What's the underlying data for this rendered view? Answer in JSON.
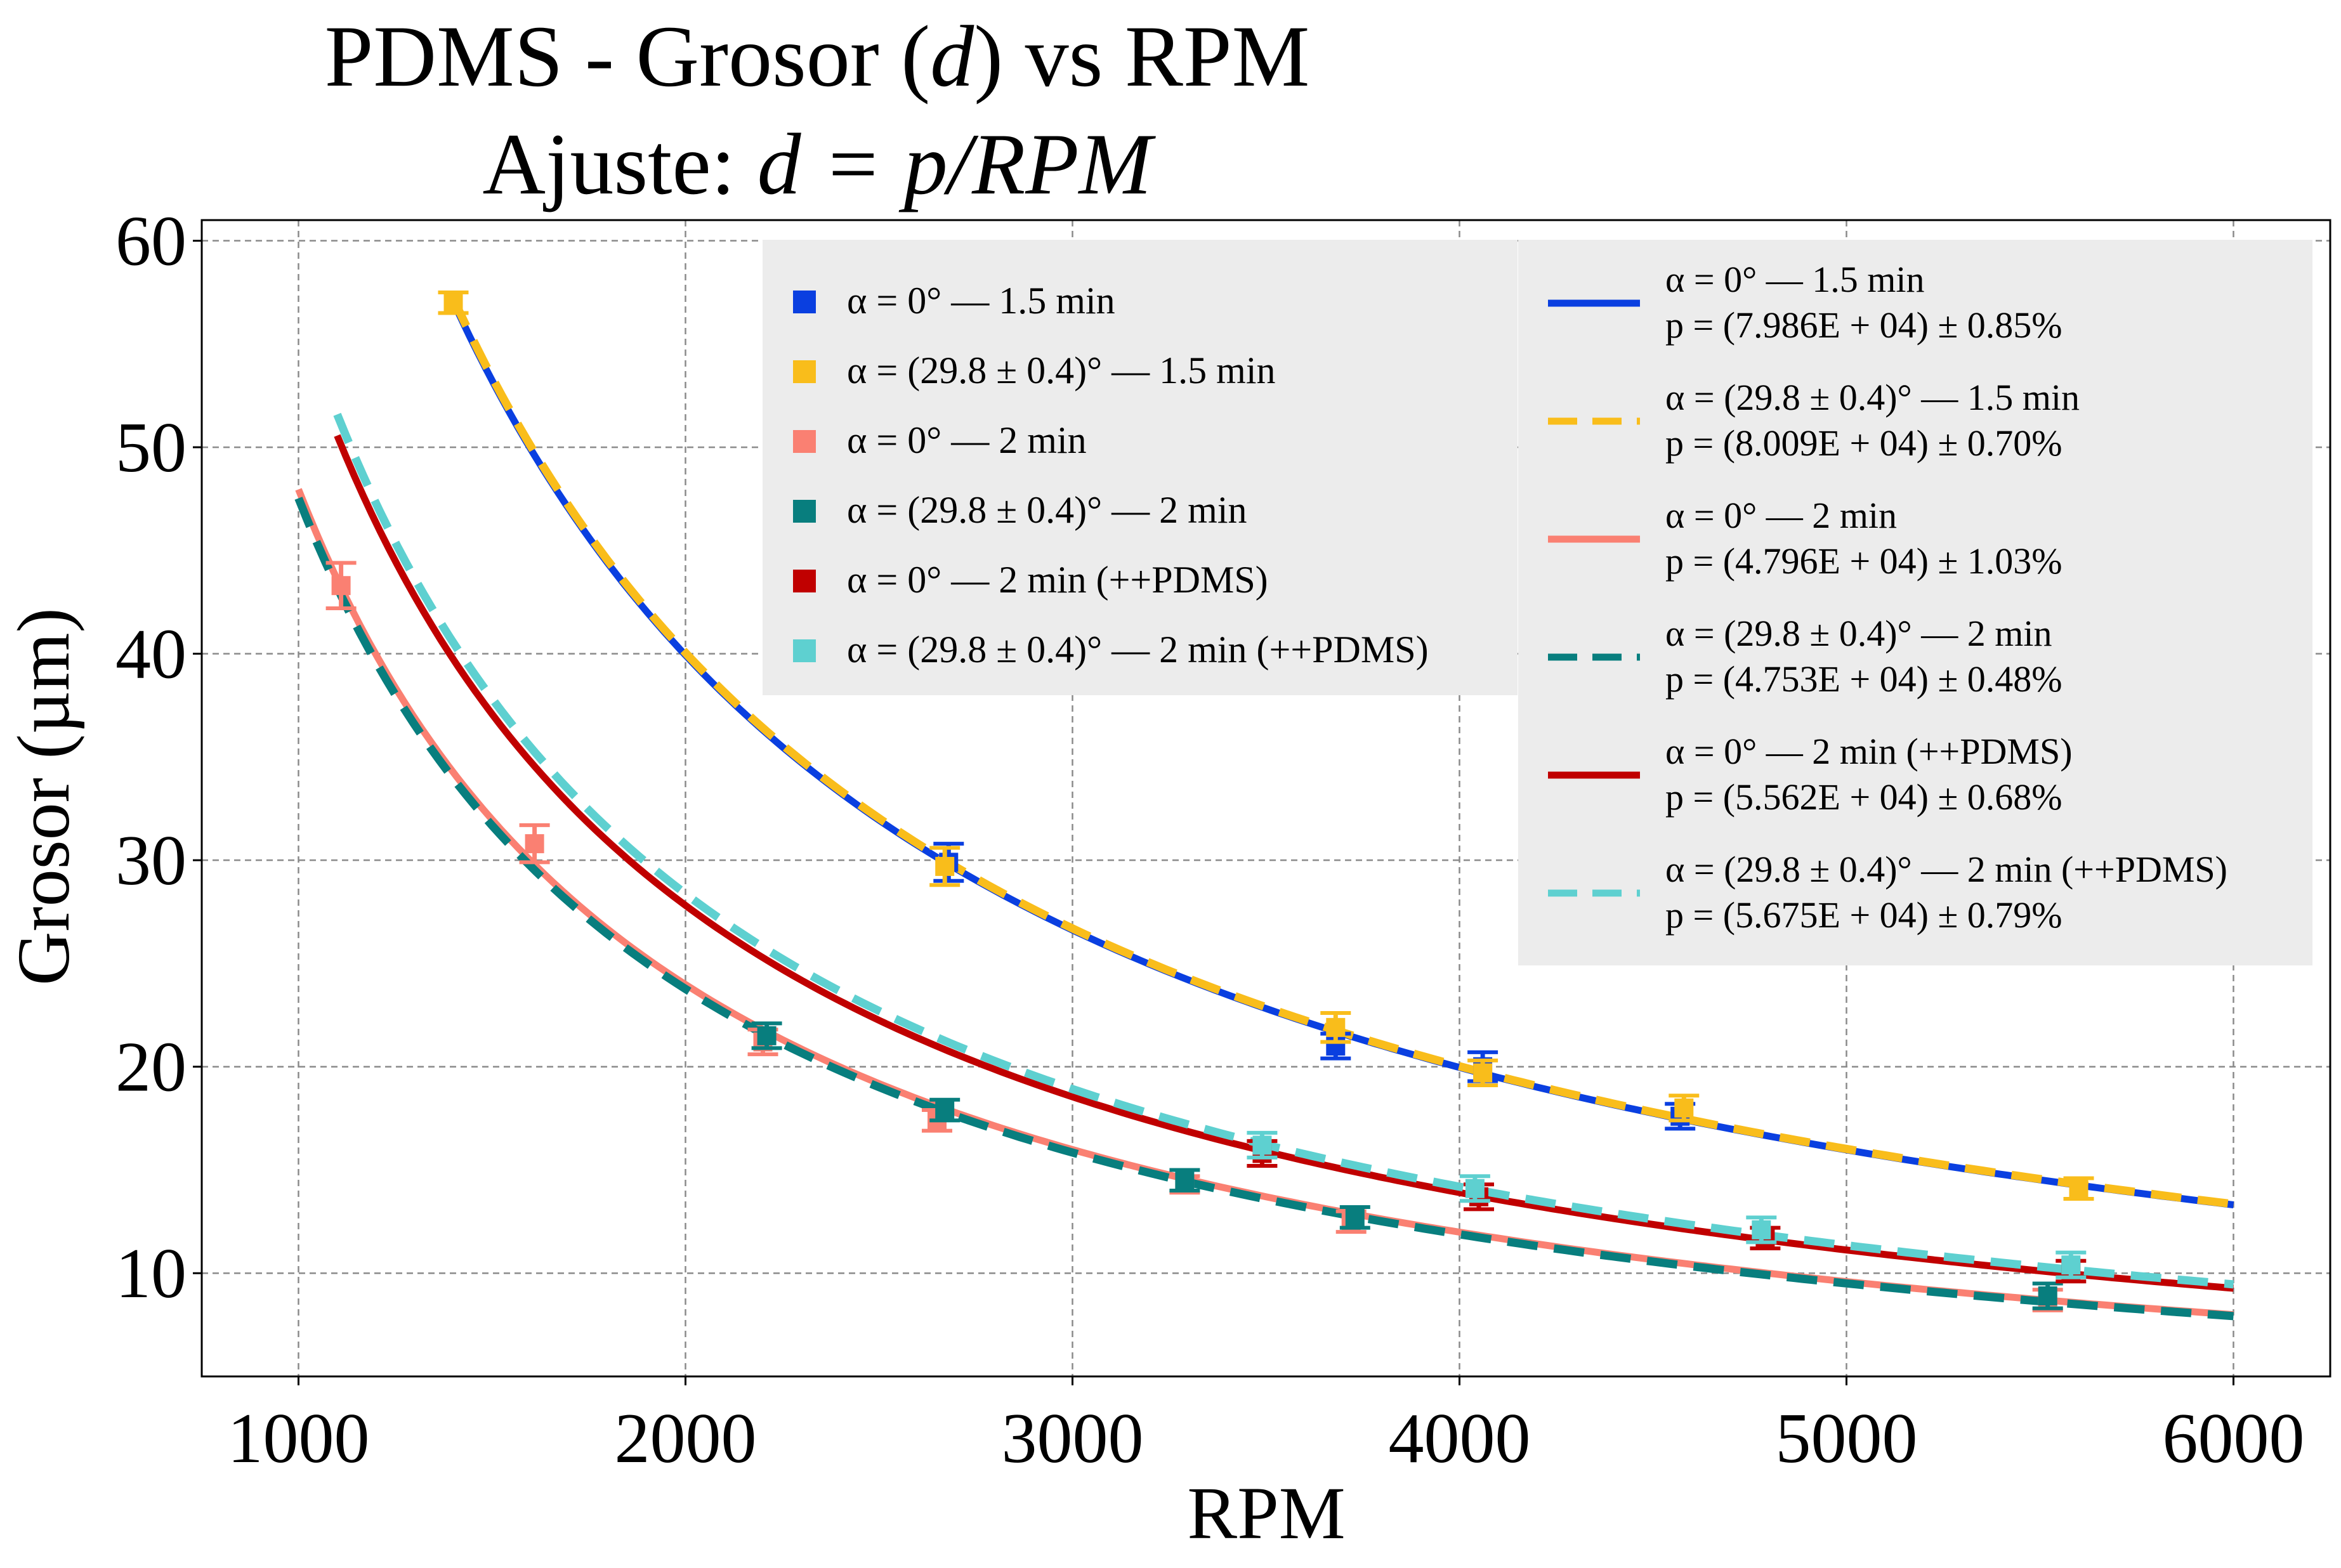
{
  "chart_data": {
    "type": "scatter",
    "title_line1_pre": "PDMS - Grosor (",
    "title_line1_var": "d",
    "title_line1_post": ") vs RPM",
    "title_line2_pre": "Ajuste: ",
    "title_line2_math": "d = p/RPM",
    "xlabel": "RPM",
    "ylabel": "Grosor (µm)",
    "xlim": [
      750,
      6250
    ],
    "ylim": [
      5,
      61
    ],
    "xticks": [
      1000,
      2000,
      3000,
      4000,
      5000,
      6000
    ],
    "yticks": [
      10,
      20,
      30,
      40,
      50,
      60
    ],
    "grid": true,
    "legend_placement": "top-right",
    "scatter_series": [
      {
        "name": "α = 0° — 1.5 min",
        "color": "#0a3fe0",
        "marker": "square",
        "points": [
          {
            "x": 1400,
            "y": 57.0,
            "err": 0.5
          },
          {
            "x": 2680,
            "y": 29.9,
            "err": 0.9
          },
          {
            "x": 3680,
            "y": 21.0,
            "err": 0.6
          },
          {
            "x": 4060,
            "y": 20.0,
            "err": 0.7
          },
          {
            "x": 4570,
            "y": 17.6,
            "err": 0.6
          },
          {
            "x": 5600,
            "y": 14.1,
            "err": 0.5
          }
        ]
      },
      {
        "name": "α = (29.8 ± 0.4)° — 1.5 min",
        "color": "#f9bd1b",
        "marker": "square",
        "points": [
          {
            "x": 1400,
            "y": 57.0,
            "err": 0.5
          },
          {
            "x": 2670,
            "y": 29.7,
            "err": 0.9
          },
          {
            "x": 3680,
            "y": 21.9,
            "err": 0.7
          },
          {
            "x": 4060,
            "y": 19.7,
            "err": 0.6
          },
          {
            "x": 4580,
            "y": 18.0,
            "err": 0.6
          },
          {
            "x": 5600,
            "y": 14.1,
            "err": 0.5
          }
        ]
      },
      {
        "name": "α = 0° — 2 min",
        "color": "#fa8072",
        "marker": "square",
        "points": [
          {
            "x": 1110,
            "y": 43.3,
            "err": 1.1
          },
          {
            "x": 1610,
            "y": 30.8,
            "err": 0.9
          },
          {
            "x": 2200,
            "y": 21.2,
            "err": 0.6
          },
          {
            "x": 2650,
            "y": 17.4,
            "err": 0.5
          },
          {
            "x": 3290,
            "y": 14.3,
            "err": 0.4
          },
          {
            "x": 3720,
            "y": 12.5,
            "err": 0.5
          },
          {
            "x": 5520,
            "y": 8.7,
            "err": 0.5
          }
        ]
      },
      {
        "name": "α = (29.8 ± 0.4)° — 2 min",
        "color": "#087e7e",
        "marker": "square",
        "points": [
          {
            "x": 2210,
            "y": 21.5,
            "err": 0.6
          },
          {
            "x": 2670,
            "y": 17.9,
            "err": 0.5
          },
          {
            "x": 3290,
            "y": 14.5,
            "err": 0.5
          },
          {
            "x": 3730,
            "y": 12.7,
            "err": 0.5
          },
          {
            "x": 5520,
            "y": 8.9,
            "err": 0.6
          }
        ]
      },
      {
        "name": "α = 0° — 2 min (++PDMS)",
        "color": "#c00000",
        "marker": "square",
        "points": [
          {
            "x": 3490,
            "y": 15.8,
            "err": 0.6
          },
          {
            "x": 4050,
            "y": 13.7,
            "err": 0.6
          },
          {
            "x": 4790,
            "y": 11.7,
            "err": 0.5
          },
          {
            "x": 5580,
            "y": 10.1,
            "err": 0.5
          }
        ]
      },
      {
        "name": "α = (29.8 ± 0.4)° — 2 min (++PDMS)",
        "color": "#5ed0d0",
        "marker": "square",
        "points": [
          {
            "x": 3490,
            "y": 16.2,
            "err": 0.6
          },
          {
            "x": 4040,
            "y": 14.1,
            "err": 0.6
          },
          {
            "x": 4780,
            "y": 12.1,
            "err": 0.6
          },
          {
            "x": 5580,
            "y": 10.4,
            "err": 0.6
          }
        ]
      }
    ],
    "fit_series": [
      {
        "name": "α = 0° — 1.5 min",
        "color": "#0a3fe0",
        "dash": "solid",
        "p": 79860,
        "x_range": [
          1400,
          6000
        ],
        "label_p": "p = (7.986E + 04) ± 0.85%"
      },
      {
        "name": "α = (29.8 ± 0.4)° — 1.5 min",
        "color": "#f9bd1b",
        "dash": "dashed",
        "p": 80090,
        "x_range": [
          1400,
          6000
        ],
        "label_p": "p = (8.009E + 04) ± 0.70%"
      },
      {
        "name": "α = 0° — 2 min",
        "color": "#fa8072",
        "dash": "solid",
        "p": 47960,
        "x_range": [
          1000,
          6000
        ],
        "label_p": "p = (4.796E + 04) ± 1.03%"
      },
      {
        "name": "α = (29.8 ± 0.4)° — 2 min",
        "color": "#087e7e",
        "dash": "dashed",
        "p": 47530,
        "x_range": [
          1000,
          6000
        ],
        "label_p": "p = (4.753E + 04) ± 0.48%"
      },
      {
        "name": "α = 0° — 2 min (++PDMS)",
        "color": "#c00000",
        "dash": "solid",
        "p": 55620,
        "x_range": [
          1100,
          6000
        ],
        "label_p": "p = (5.562E + 04) ± 0.68%"
      },
      {
        "name": "α = (29.8 ± 0.4)° — 2 min (++PDMS)",
        "color": "#5ed0d0",
        "dash": "dashed",
        "p": 56750,
        "x_range": [
          1100,
          6000
        ],
        "label_p": "p = (5.675E + 04) ± 0.79%"
      }
    ]
  }
}
